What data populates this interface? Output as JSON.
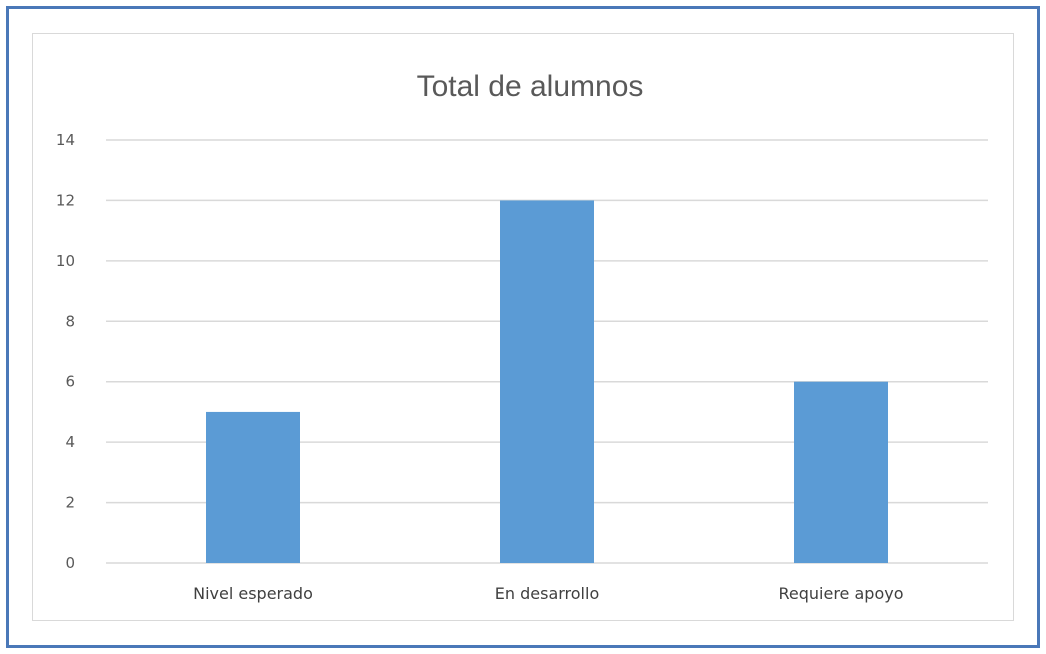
{
  "chart_data": {
    "type": "bar",
    "title": "Total de alumnos",
    "categories": [
      "Nivel esperado",
      "En desarrollo",
      "Requiere apoyo"
    ],
    "values": [
      5,
      12,
      6
    ],
    "ylim": [
      0,
      14
    ],
    "yticks": [
      0,
      2,
      4,
      6,
      8,
      10,
      12,
      14
    ],
    "grid": true,
    "legend": "none",
    "colors": {
      "bar": "#5b9bd5",
      "grid": "#d9d9d9",
      "frame": "#4a78b8"
    }
  }
}
